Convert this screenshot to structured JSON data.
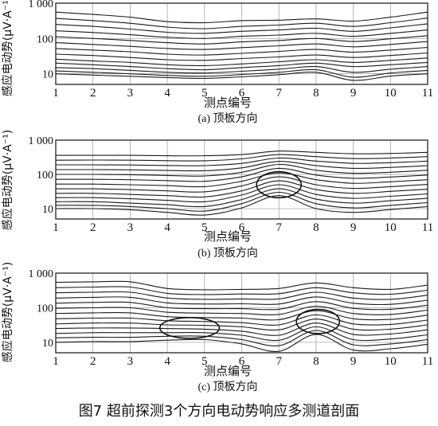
{
  "figure_caption": "图7 超前探测3个方向电动势响应多测道剖面",
  "colors": {
    "line": "#1a1a1a",
    "grid": "#9a9a9a",
    "frame": "#111111"
  },
  "chart_data": [
    {
      "type": "line",
      "title": "(a) 顶板方向",
      "xlabel": "测点编号",
      "ylabel": "感应电动势(μV·A⁻¹)",
      "yscale": "log",
      "ylim": [
        5,
        1000
      ],
      "xlim": [
        1,
        11
      ],
      "x": [
        1,
        2,
        3,
        4,
        5,
        6,
        7,
        8,
        9,
        10,
        11
      ],
      "x_ticks": [
        "1",
        "2",
        "3",
        "4",
        "5",
        "6",
        "7",
        "8",
        "9",
        "10",
        "11"
      ],
      "y_ticks": [
        "10",
        "100",
        "1 000"
      ],
      "grid": true,
      "series": [
        {
          "values": [
            560,
            480,
            400,
            300,
            280,
            320,
            330,
            360,
            310,
            400,
            560
          ]
        },
        {
          "values": [
            370,
            320,
            270,
            210,
            190,
            220,
            240,
            270,
            220,
            280,
            380
          ]
        },
        {
          "values": [
            250,
            220,
            185,
            150,
            140,
            160,
            175,
            195,
            160,
            200,
            260
          ]
        },
        {
          "values": [
            165,
            148,
            128,
            108,
            100,
            115,
            125,
            140,
            115,
            140,
            175
          ]
        },
        {
          "values": [
            112,
            100,
            88,
            76,
            70,
            80,
            88,
            100,
            82,
            98,
            120
          ]
        },
        {
          "values": [
            76,
            68,
            60,
            52,
            49,
            55,
            62,
            70,
            58,
            68,
            82
          ]
        },
        {
          "values": [
            52,
            47,
            42,
            36,
            34,
            38,
            43,
            49,
            41,
            47,
            56
          ]
        },
        {
          "values": [
            36,
            33,
            29,
            25,
            24,
            27,
            30,
            34,
            29,
            33,
            39
          ]
        },
        {
          "values": [
            26,
            23,
            21,
            18,
            17,
            19,
            22,
            25,
            21,
            24,
            28
          ]
        },
        {
          "values": [
            20,
            18,
            16,
            14,
            13,
            15,
            17,
            20,
            16,
            18,
            21
          ]
        },
        {
          "values": [
            15,
            14,
            12.5,
            11,
            10.5,
            11.8,
            13.5,
            16,
            11,
            13.5,
            16
          ]
        },
        {
          "values": [
            12,
            11,
            10,
            9,
            8.5,
            9.5,
            11,
            13,
            8,
            10.5,
            12.5
          ]
        },
        {
          "values": [
            10,
            9.2,
            8.5,
            7.8,
            7.4,
            8.2,
            9.4,
            11,
            6.5,
            8.6,
            10
          ]
        }
      ]
    },
    {
      "type": "line",
      "title": "(b) 顶板方向",
      "xlabel": "测点编号",
      "ylabel": "感应电动势(μV·A⁻¹)",
      "yscale": "log",
      "ylim": [
        5,
        1000
      ],
      "xlim": [
        1,
        11
      ],
      "x": [
        1,
        2,
        3,
        4,
        5,
        6,
        7,
        8,
        9,
        10,
        11
      ],
      "x_ticks": [
        "1",
        "2",
        "3",
        "4",
        "5",
        "6",
        "7",
        "8",
        "9",
        "10",
        "11"
      ],
      "y_ticks": [
        "10",
        "100",
        "1 000"
      ],
      "grid": true,
      "series": [
        {
          "values": [
            360,
            360,
            360,
            350,
            350,
            380,
            480,
            440,
            400,
            410,
            440
          ]
        },
        {
          "values": [
            260,
            262,
            260,
            252,
            250,
            285,
            380,
            330,
            290,
            300,
            330
          ]
        },
        {
          "values": [
            190,
            190,
            188,
            182,
            180,
            210,
            300,
            245,
            210,
            220,
            245
          ]
        },
        {
          "values": [
            138,
            138,
            136,
            130,
            128,
            155,
            240,
            180,
            150,
            160,
            180
          ]
        },
        {
          "values": [
            100,
            100,
            98,
            93,
            90,
            115,
            195,
            132,
            108,
            116,
            132
          ]
        },
        {
          "values": [
            72,
            72,
            70,
            66,
            63,
            85,
            150,
            96,
            77,
            84,
            96
          ]
        },
        {
          "values": [
            52,
            52,
            50,
            47,
            44,
            63,
            110,
            70,
            55,
            61,
            70
          ]
        },
        {
          "values": [
            38,
            38,
            36,
            33,
            31,
            46,
            85,
            50,
            39,
            44,
            51
          ]
        },
        {
          "values": [
            28,
            28,
            26,
            24,
            22,
            33,
            65,
            36,
            28,
            32,
            37
          ]
        },
        {
          "values": [
            21,
            21,
            19.5,
            17.5,
            16,
            25,
            50,
            26,
            20,
            23,
            27
          ]
        },
        {
          "values": [
            16,
            16,
            14.5,
            13,
            11.5,
            18.5,
            38,
            19,
            14.5,
            17,
            20
          ]
        },
        {
          "values": [
            12.5,
            12.5,
            11.5,
            10,
            8.5,
            14,
            30,
            14,
            10.5,
            12.5,
            15
          ]
        },
        {
          "values": [
            10,
            10,
            9.3,
            7.8,
            6.5,
            10.5,
            24,
            10,
            7.8,
            9.4,
            11.5
          ]
        }
      ],
      "annotations": [
        {
          "shape": "ellipse",
          "cx": 7,
          "cy": 50,
          "rx": 0.6,
          "ry_decades": [
            0.38,
            0.38
          ]
        }
      ]
    },
    {
      "type": "line",
      "title": "(c) 顶板方向",
      "xlabel": "测点编号",
      "ylabel": "感应电动势(μV·A⁻¹)",
      "yscale": "log",
      "ylim": [
        5,
        1000
      ],
      "xlim": [
        1,
        11
      ],
      "x": [
        1,
        2,
        3,
        4,
        5,
        6,
        7,
        8,
        9,
        10,
        11
      ],
      "x_ticks": [
        "1",
        "2",
        "3",
        "4",
        "5",
        "6",
        "7",
        "8",
        "9",
        "10",
        "11"
      ],
      "y_ticks": [
        "10",
        "100",
        "1 000"
      ],
      "grid": true,
      "series": [
        {
          "values": [
            540,
            560,
            560,
            360,
            330,
            340,
            360,
            520,
            380,
            340,
            450
          ]
        },
        {
          "values": [
            380,
            395,
            395,
            260,
            240,
            250,
            255,
            380,
            270,
            245,
            320
          ]
        },
        {
          "values": [
            270,
            280,
            280,
            190,
            175,
            180,
            180,
            280,
            190,
            175,
            230
          ]
        },
        {
          "values": [
            190,
            200,
            200,
            138,
            128,
            130,
            128,
            205,
            135,
            125,
            165
          ]
        },
        {
          "values": [
            135,
            142,
            142,
            100,
            94,
            94,
            90,
            150,
            96,
            90,
            118
          ]
        },
        {
          "values": [
            96,
            100,
            100,
            74,
            70,
            68,
            64,
            110,
            68,
            64,
            85
          ]
        },
        {
          "values": [
            68,
            71,
            71,
            55,
            52,
            50,
            45,
            82,
            48,
            46,
            61
          ]
        },
        {
          "values": [
            48,
            50,
            50,
            42,
            40,
            37,
            32,
            62,
            34,
            33,
            44
          ]
        },
        {
          "values": [
            34,
            36,
            36,
            32,
            31,
            28,
            23,
            47,
            24,
            24,
            32
          ]
        },
        {
          "values": [
            25,
            26,
            26,
            25,
            24,
            21,
            16,
            36,
            17,
            17.5,
            23
          ]
        },
        {
          "values": [
            18,
            19,
            19,
            19,
            19,
            16,
            11.5,
            28,
            12,
            12.5,
            16.5
          ]
        },
        {
          "values": [
            13.5,
            14,
            14,
            15,
            15,
            12,
            8,
            22,
            8.5,
            9,
            12
          ]
        },
        {
          "values": [
            10,
            10.5,
            10.5,
            11.5,
            12,
            9,
            5.5,
            17,
            6,
            6.5,
            8.8
          ]
        }
      ],
      "annotations": [
        {
          "shape": "ellipse",
          "cx": 4.6,
          "cy": 26,
          "rx": 0.8,
          "ry_decades": [
            0.3,
            0.3
          ]
        },
        {
          "shape": "ellipse",
          "cx": 8.05,
          "cy": 40,
          "rx": 0.58,
          "ry_decades": [
            0.35,
            0.35
          ]
        }
      ]
    }
  ]
}
